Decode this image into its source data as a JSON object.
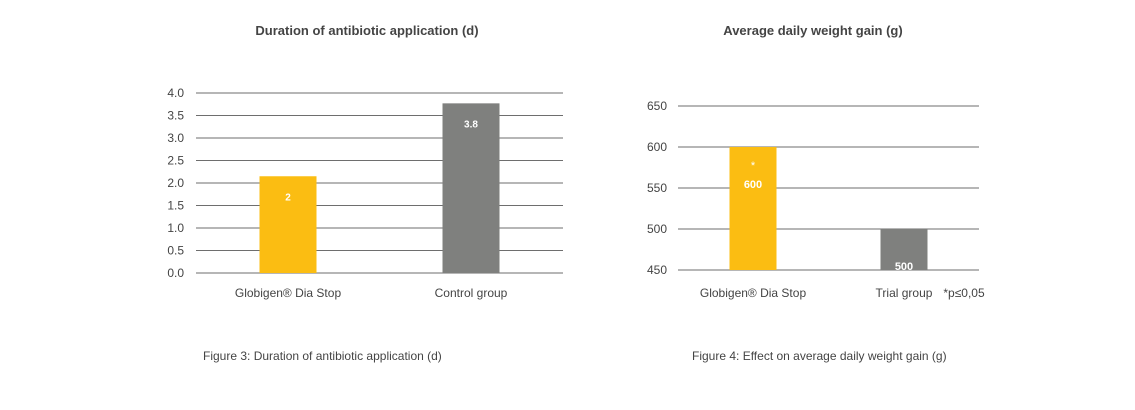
{
  "chart_data": [
    {
      "type": "bar",
      "title": "Duration of antibiotic application (d)",
      "categories": [
        "Globigen® Dia Stop",
        "Control group"
      ],
      "values": [
        2.15,
        3.77
      ],
      "data_labels": [
        "2",
        "3.8"
      ],
      "colors": [
        "#fbbd12",
        "#7f807e"
      ],
      "ylim": [
        0.0,
        4.0
      ],
      "yticks": [
        "0.0",
        "0.5",
        "1.0",
        "1.5",
        "2.0",
        "2.5",
        "3.0",
        "3.5",
        "4.0"
      ],
      "grid": true,
      "caption": "Figure 3: Duration of antibiotic application (d)"
    },
    {
      "type": "bar",
      "title": "Average daily weight gain (g)",
      "categories": [
        "Globigen® Dia Stop",
        "Trial group"
      ],
      "values": [
        600,
        500
      ],
      "data_labels": [
        "600",
        "500"
      ],
      "significance_marks": [
        "*",
        ""
      ],
      "colors": [
        "#fbbd12",
        "#7f807e"
      ],
      "ylim": [
        450,
        650
      ],
      "yticks": [
        "450",
        "500",
        "550",
        "600",
        "650"
      ],
      "grid": true,
      "note": "*p≤0,05",
      "caption": "Figure 4: Effect on average daily weight gain (g)"
    }
  ]
}
